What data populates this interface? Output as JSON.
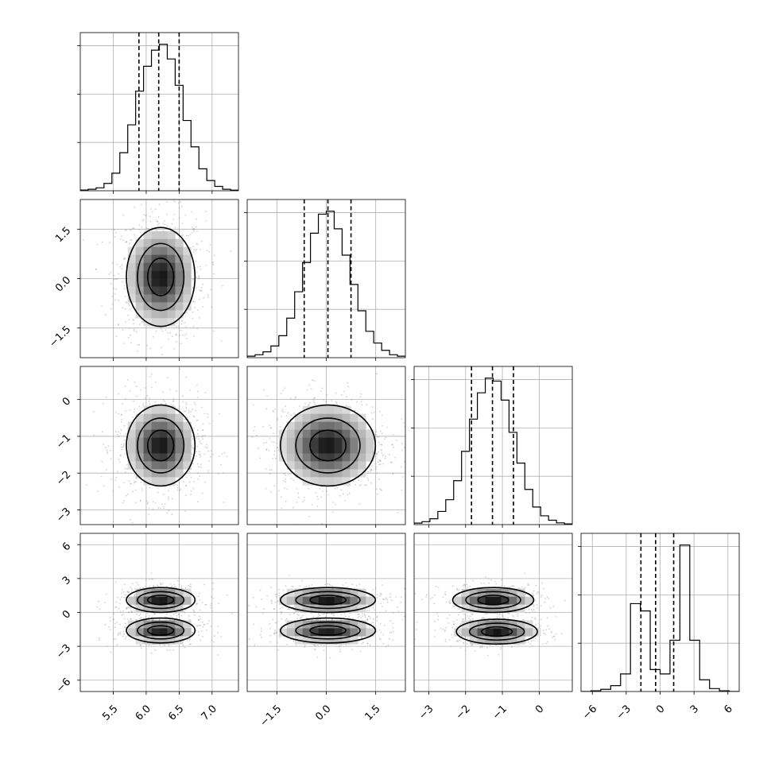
{
  "chart_data": {
    "type": "corner",
    "title": "",
    "parameters": [
      {
        "range": [
          5.0,
          7.4
        ],
        "ticks": [
          5.5,
          6.0,
          6.5,
          7.0
        ],
        "tick_labels": [
          "5.5",
          "6.0",
          "6.5",
          "7.0"
        ],
        "quantiles": [
          5.89,
          6.19,
          6.5
        ],
        "hist": [
          0.005,
          0.01,
          0.02,
          0.05,
          0.12,
          0.26,
          0.45,
          0.68,
          0.85,
          0.96,
          1.0,
          0.9,
          0.72,
          0.48,
          0.3,
          0.15,
          0.07,
          0.03,
          0.01,
          0.004
        ]
      },
      {
        "range": [
          -2.4,
          2.4
        ],
        "ticks": [
          -1.5,
          0.0,
          1.5
        ],
        "tick_labels": [
          "−1.5",
          "0.0",
          "1.5"
        ],
        "quantiles": [
          -0.67,
          0.05,
          0.75
        ],
        "hist": [
          0.01,
          0.02,
          0.04,
          0.08,
          0.15,
          0.27,
          0.45,
          0.65,
          0.85,
          0.98,
          1.0,
          0.88,
          0.7,
          0.5,
          0.32,
          0.18,
          0.1,
          0.05,
          0.02,
          0.01
        ]
      },
      {
        "range": [
          -3.4,
          0.9
        ],
        "ticks": [
          -3,
          -2,
          -1,
          0
        ],
        "tick_labels": [
          "−3",
          "−2",
          "−1",
          "0"
        ],
        "quantiles": [
          -1.84,
          -1.27,
          -0.7
        ],
        "hist": [
          0.01,
          0.02,
          0.04,
          0.09,
          0.17,
          0.3,
          0.5,
          0.72,
          0.9,
          1.0,
          0.98,
          0.85,
          0.63,
          0.42,
          0.24,
          0.12,
          0.06,
          0.03,
          0.012,
          0.005
        ]
      },
      {
        "range": [
          -7,
          7
        ],
        "ticks": [
          -6,
          -3,
          0,
          3,
          6
        ],
        "tick_labels": [
          "−6",
          "−3",
          "0",
          "3",
          "6"
        ],
        "quantiles": [
          -1.7,
          -0.4,
          1.2
        ],
        "hist": [
          0.0,
          0.005,
          0.015,
          0.04,
          0.12,
          0.6,
          0.55,
          0.15,
          0.12,
          0.35,
          1.0,
          0.35,
          0.08,
          0.02,
          0.005,
          0.0
        ]
      }
    ],
    "pairs": [
      {
        "row": 1,
        "col": 0,
        "modes": [
          {
            "cx": 6.22,
            "cy": 0.05,
            "sx": 0.26,
            "sy": 0.75
          }
        ]
      },
      {
        "row": 2,
        "col": 0,
        "modes": [
          {
            "cx": 6.22,
            "cy": -1.25,
            "sx": 0.26,
            "sy": 0.55
          }
        ]
      },
      {
        "row": 2,
        "col": 1,
        "modes": [
          {
            "cx": 0.05,
            "cy": -1.25,
            "sx": 0.72,
            "sy": 0.55
          }
        ]
      },
      {
        "row": 3,
        "col": 0,
        "modes": [
          {
            "cx": 6.22,
            "cy": 1.1,
            "sx": 0.26,
            "sy": 0.55
          },
          {
            "cx": 6.22,
            "cy": -1.6,
            "sx": 0.26,
            "sy": 0.55
          }
        ]
      },
      {
        "row": 3,
        "col": 1,
        "modes": [
          {
            "cx": 0.05,
            "cy": 1.1,
            "sx": 0.72,
            "sy": 0.55
          },
          {
            "cx": 0.05,
            "cy": -1.6,
            "sx": 0.72,
            "sy": 0.55
          }
        ]
      },
      {
        "row": 3,
        "col": 2,
        "modes": [
          {
            "cx": -1.25,
            "cy": 1.1,
            "sx": 0.55,
            "sy": 0.55
          },
          {
            "cx": -1.15,
            "cy": -1.7,
            "sx": 0.55,
            "sy": 0.55
          }
        ]
      }
    ],
    "contour_levels": [
      0.135,
      0.4,
      0.75
    ],
    "grid": true,
    "xlabel": "",
    "ylabel": ""
  }
}
